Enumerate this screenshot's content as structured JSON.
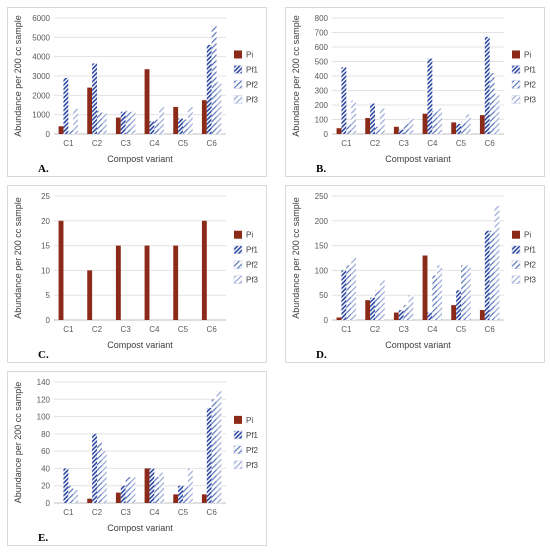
{
  "colors": {
    "Pi": "#8b2a18",
    "Pf1": "#2c47a0",
    "Pf2": "#5874b8",
    "Pf3": "#9aa8d8",
    "grid": "#e3e3e3",
    "axis": "#bfbfbf"
  },
  "chart_data": [
    {
      "type": "bar",
      "panel": "A.",
      "xlabel": "Compost variant",
      "ylabel": "Abundance per 200 cc sample",
      "ylim": [
        0,
        6000
      ],
      "yticks": [
        0,
        1000,
        2000,
        3000,
        4000,
        5000,
        6000
      ],
      "categories": [
        "C1",
        "C2",
        "C3",
        "C4",
        "C5",
        "C6"
      ],
      "series": [
        {
          "name": "Pi",
          "values": [
            400,
            2400,
            850,
            3350,
            1400,
            1750
          ]
        },
        {
          "name": "Pf1",
          "values": [
            2900,
            3650,
            1150,
            650,
            800,
            4600
          ]
        },
        {
          "name": "Pf2",
          "values": [
            200,
            1200,
            1200,
            750,
            750,
            5600
          ]
        },
        {
          "name": "Pf3",
          "values": [
            1300,
            1100,
            1150,
            1400,
            1400,
            2700
          ]
        }
      ],
      "grid": true,
      "legend": "right"
    },
    {
      "type": "bar",
      "panel": "B.",
      "xlabel": "Compost variant",
      "ylabel": "Abundance per 200 cc sample",
      "ylim": [
        0,
        800
      ],
      "yticks": [
        0,
        100,
        200,
        300,
        400,
        500,
        600,
        700,
        800
      ],
      "categories": [
        "C1",
        "C2",
        "C3",
        "C4",
        "C5",
        "C6"
      ],
      "series": [
        {
          "name": "Pi",
          "values": [
            40,
            110,
            50,
            140,
            80,
            130
          ]
        },
        {
          "name": "Pf1",
          "values": [
            460,
            210,
            30,
            520,
            70,
            670
          ]
        },
        {
          "name": "Pf2",
          "values": [
            70,
            50,
            70,
            160,
            80,
            420
          ]
        },
        {
          "name": "Pf3",
          "values": [
            230,
            175,
            110,
            175,
            135,
            280
          ]
        }
      ],
      "grid": true,
      "legend": "right"
    },
    {
      "type": "bar",
      "panel": "C.",
      "xlabel": "Compost variant",
      "ylabel": "Abundance per 200 cc sample",
      "ylim": [
        0,
        25
      ],
      "yticks": [
        0,
        5,
        10,
        15,
        20,
        25
      ],
      "categories": [
        "C1",
        "C2",
        "C3",
        "C4",
        "C5",
        "C6"
      ],
      "series": [
        {
          "name": "Pi",
          "values": [
            20,
            10,
            15,
            15,
            15,
            20
          ]
        },
        {
          "name": "Pf1",
          "values": [
            0,
            0,
            0,
            0,
            0,
            0
          ]
        },
        {
          "name": "Pf2",
          "values": [
            0,
            0,
            0,
            0,
            0,
            0
          ]
        },
        {
          "name": "Pf3",
          "values": [
            0,
            0,
            0,
            0,
            0,
            0
          ]
        }
      ],
      "grid": true,
      "legend": "right"
    },
    {
      "type": "bar",
      "panel": "D.",
      "xlabel": "Compost variant",
      "ylabel": "Abundance per 200 cc sample",
      "ylim": [
        0,
        250
      ],
      "yticks": [
        0,
        50,
        100,
        150,
        200,
        250
      ],
      "categories": [
        "C1",
        "C2",
        "C3",
        "C4",
        "C5",
        "C6"
      ],
      "series": [
        {
          "name": "Pi",
          "values": [
            5,
            40,
            15,
            130,
            30,
            20
          ]
        },
        {
          "name": "Pf1",
          "values": [
            100,
            45,
            20,
            15,
            60,
            180
          ]
        },
        {
          "name": "Pf2",
          "values": [
            110,
            60,
            30,
            90,
            110,
            180
          ]
        },
        {
          "name": "Pf3",
          "values": [
            125,
            80,
            50,
            110,
            110,
            230
          ]
        }
      ],
      "grid": true,
      "legend": "right"
    },
    {
      "type": "bar",
      "panel": "E.",
      "xlabel": "Compost variant",
      "ylabel": "Abundance per 200 cc sample",
      "ylim": [
        0,
        140
      ],
      "yticks": [
        0,
        20,
        40,
        60,
        80,
        100,
        120,
        140
      ],
      "categories": [
        "C1",
        "C2",
        "C3",
        "C4",
        "C5",
        "C6"
      ],
      "series": [
        {
          "name": "Pi",
          "values": [
            0,
            5,
            12,
            40,
            10,
            10
          ]
        },
        {
          "name": "Pf1",
          "values": [
            40,
            80,
            20,
            40,
            20,
            110
          ]
        },
        {
          "name": "Pf2",
          "values": [
            20,
            70,
            30,
            30,
            20,
            120
          ]
        },
        {
          "name": "Pf3",
          "values": [
            15,
            60,
            30,
            35,
            40,
            130
          ]
        }
      ],
      "grid": true,
      "legend": "right"
    }
  ]
}
